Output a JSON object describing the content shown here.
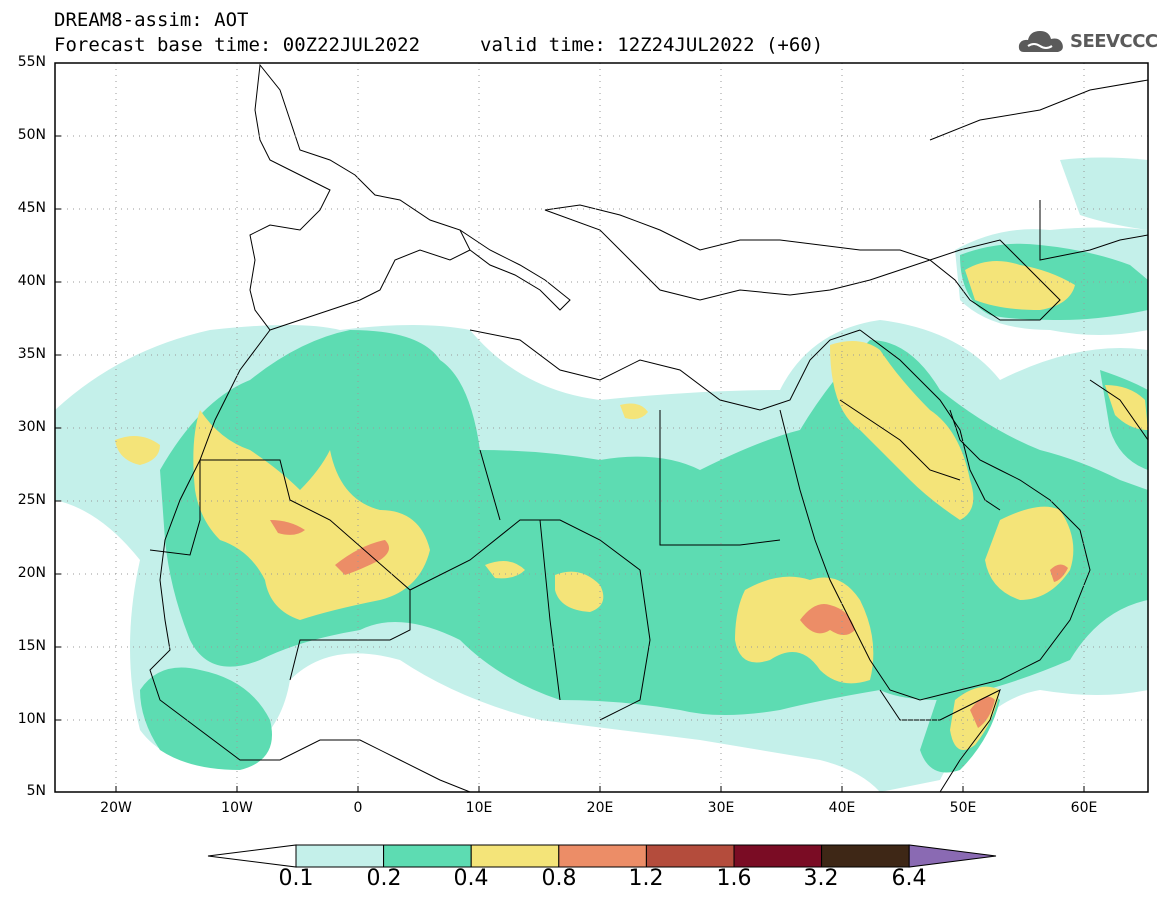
{
  "header": {
    "line1": "DREAM8-assim: AOT",
    "line2": "Forecast base time: 00Z22JUL2022",
    "line3": "valid time: 12Z24JUL2022 (+60)"
  },
  "logo": {
    "text": "SEEVCCC",
    "icon": "cloud-logo-icon"
  },
  "axes": {
    "lat_labels": [
      "55N",
      "50N",
      "45N",
      "40N",
      "35N",
      "30N",
      "25N",
      "20N",
      "15N",
      "10N",
      "5N"
    ],
    "lon_labels": [
      "20W",
      "10W",
      "0",
      "10E",
      "20E",
      "30E",
      "40E",
      "50E",
      "60E"
    ],
    "lat_range": [
      5,
      55
    ],
    "lon_range": [
      -25,
      65
    ],
    "grid": true
  },
  "legend": {
    "levels": [
      "0.1",
      "0.2",
      "0.4",
      "0.8",
      "1.2",
      "1.6",
      "3.2",
      "6.4"
    ],
    "colors": [
      "#ffffff",
      "#c4f0ea",
      "#5ddcb2",
      "#f4e479",
      "#ec8d67",
      "#b44c3c",
      "#7a0c24",
      "#3e2716",
      "#8a6ab3"
    ]
  }
}
